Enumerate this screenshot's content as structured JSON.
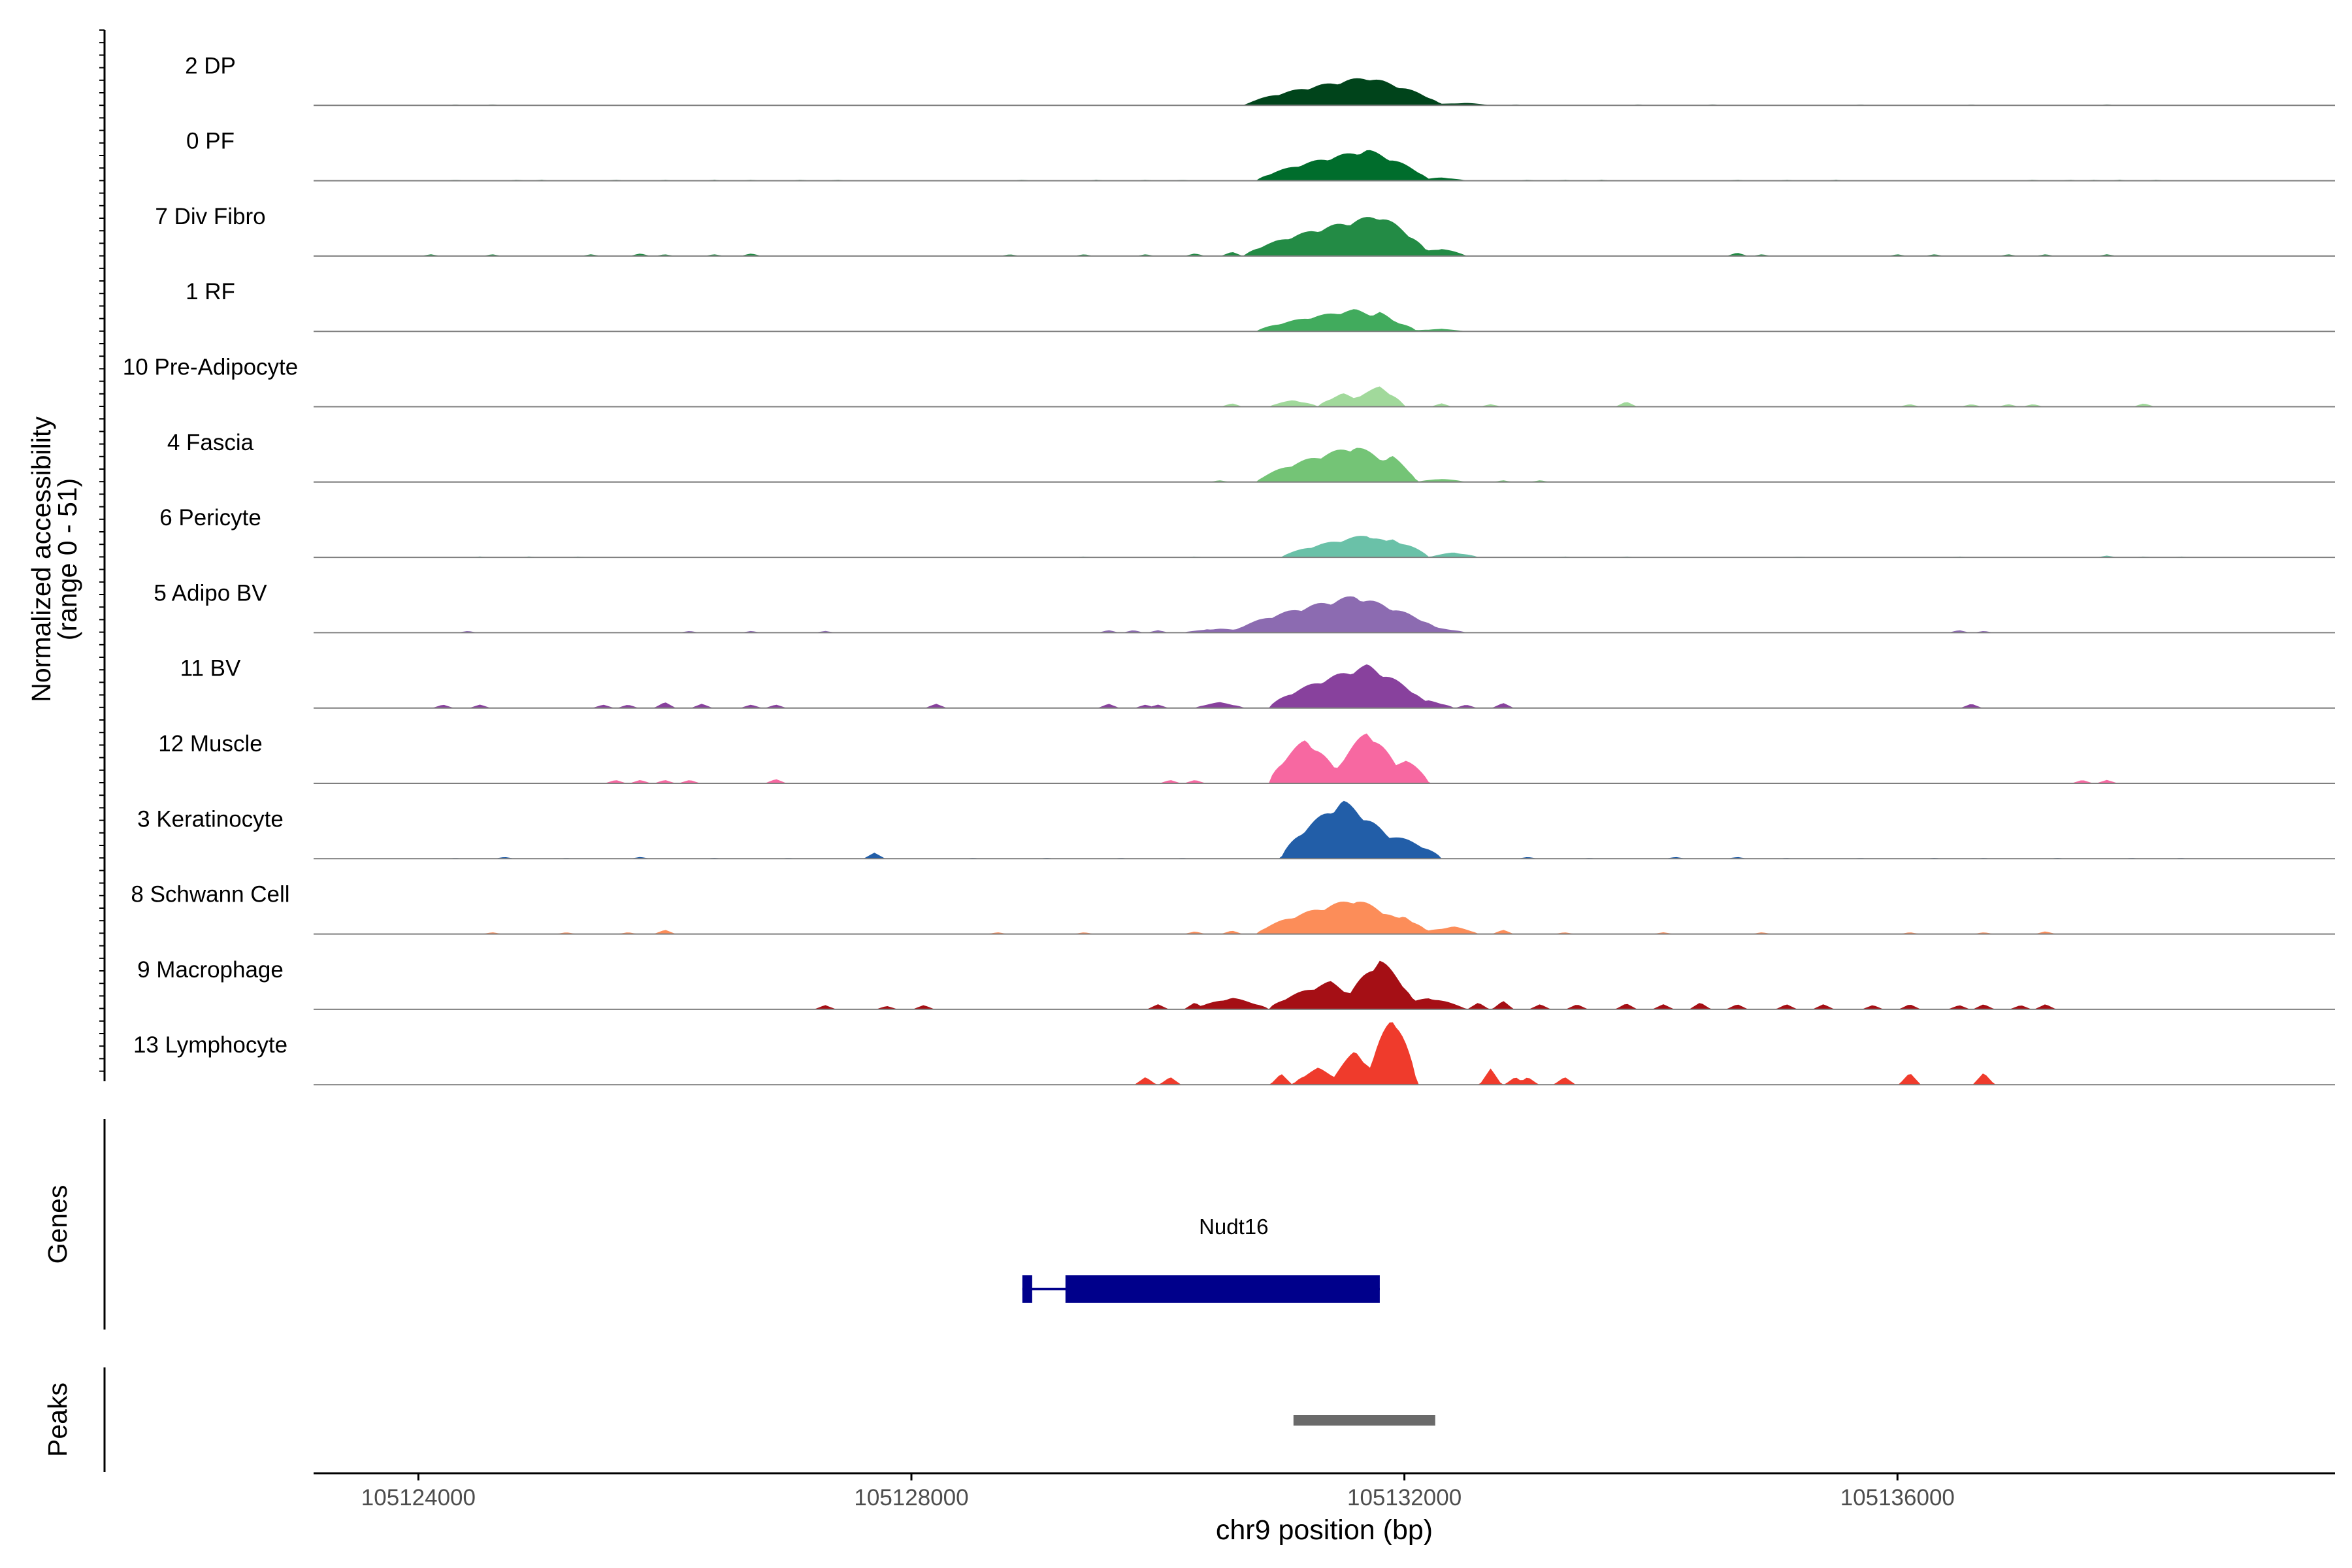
{
  "chart_data": {
    "type": "area",
    "title": "",
    "ylabel_line1": "Normalized accessibility",
    "ylabel_line2": "(range 0 - 51)",
    "y_range": [
      0,
      51
    ],
    "xlabel": "chr9 position (bp)",
    "xlim": [
      105123150,
      105139550
    ],
    "x_ticks": [
      105124000,
      105128000,
      105132000,
      105136000
    ],
    "x_tick_labels": [
      "105124000",
      "105128000",
      "105132000",
      "105136000"
    ],
    "tracks": [
      {
        "name": "2 DP",
        "color": "#00441b",
        "peaks": [
          [
            105131700,
            105130700,
            105132300,
            34
          ],
          [
            105131100,
            105130900,
            105131300,
            10
          ],
          [
            105132500,
            105132100,
            105132700,
            3
          ]
        ],
        "bumps": [
          [
            105124300,
            1
          ],
          [
            105124600,
            1
          ],
          [
            105132900,
            1
          ],
          [
            105133900,
            1
          ],
          [
            105134500,
            1
          ],
          [
            105135700,
            1
          ],
          [
            105136600,
            1
          ],
          [
            105137700,
            1
          ]
        ]
      },
      {
        "name": "0 PF",
        "color": "#006d2c",
        "peaks": [
          [
            105131700,
            105130800,
            105132200,
            37
          ],
          [
            105132300,
            105132100,
            105132500,
            4
          ]
        ],
        "bumps": [
          [
            105124300,
            1
          ],
          [
            105124800,
            1
          ],
          [
            105125000,
            1
          ],
          [
            105125600,
            1
          ],
          [
            105126000,
            1
          ],
          [
            105126400,
            1
          ],
          [
            105126700,
            1
          ],
          [
            105127100,
            1
          ],
          [
            105127400,
            1
          ],
          [
            105128900,
            1
          ],
          [
            105129500,
            1
          ],
          [
            105129900,
            1
          ],
          [
            105130200,
            1
          ],
          [
            105133000,
            1
          ],
          [
            105133300,
            1
          ],
          [
            105133600,
            1
          ],
          [
            105134700,
            1
          ],
          [
            105135100,
            1
          ],
          [
            105135500,
            1
          ],
          [
            105137100,
            1
          ],
          [
            105137400,
            1
          ],
          [
            105137600,
            1
          ],
          [
            105137800,
            1
          ],
          [
            105138100,
            1
          ]
        ]
      },
      {
        "name": "7 Div Fibro",
        "color": "#238b45",
        "peaks": [
          [
            105131800,
            105130700,
            105132200,
            49
          ],
          [
            105131300,
            105131000,
            105131600,
            20
          ],
          [
            105132300,
            105132000,
            105132500,
            9
          ]
        ],
        "bumps": [
          [
            105124100,
            2
          ],
          [
            105124600,
            2
          ],
          [
            105125400,
            2
          ],
          [
            105125800,
            3
          ],
          [
            105126000,
            2
          ],
          [
            105126400,
            2
          ],
          [
            105126700,
            3
          ],
          [
            105128800,
            2
          ],
          [
            105129400,
            2
          ],
          [
            105129900,
            2
          ],
          [
            105130300,
            3
          ],
          [
            105130600,
            5
          ],
          [
            105130900,
            4
          ],
          [
            105134700,
            4
          ],
          [
            105134900,
            2
          ],
          [
            105136000,
            2
          ],
          [
            105136300,
            2
          ],
          [
            105136900,
            2
          ],
          [
            105137200,
            2
          ],
          [
            105137700,
            2
          ]
        ]
      },
      {
        "name": "1 RF",
        "color": "#41ab5d",
        "peaks": [
          [
            105131600,
            105130800,
            105132100,
            26
          ],
          [
            105131800,
            105131500,
            105132000,
            23
          ],
          [
            105132300,
            105132000,
            105132500,
            3
          ]
        ],
        "bumps": []
      },
      {
        "name": "10 Pre-Adipocyte",
        "color": "#a1d99b",
        "peaks": [
          [
            105131800,
            105131500,
            105132000,
            24
          ],
          [
            105131500,
            105131300,
            105131700,
            16
          ],
          [
            105131100,
            105130900,
            105131300,
            8
          ]
        ],
        "bumps": [
          [
            105130600,
            4
          ],
          [
            105132300,
            4
          ],
          [
            105132700,
            3
          ],
          [
            105133800,
            6
          ],
          [
            105136100,
            3
          ],
          [
            105136600,
            3
          ],
          [
            105136900,
            3
          ],
          [
            105137100,
            3
          ],
          [
            105138000,
            4
          ]
        ]
      },
      {
        "name": "4 Fascia",
        "color": "#74c476",
        "peaks": [
          [
            105131600,
            105130800,
            105132100,
            43
          ],
          [
            105131900,
            105131600,
            105132100,
            31
          ],
          [
            105132300,
            105132100,
            105132500,
            4
          ]
        ],
        "bumps": [
          [
            105130500,
            2
          ],
          [
            105132800,
            2
          ],
          [
            105133100,
            2
          ]
        ]
      },
      {
        "name": "6 Pericyte",
        "color": "#6ac1a8",
        "peaks": [
          [
            105131700,
            105131000,
            105132100,
            27
          ],
          [
            105131900,
            105131700,
            105132200,
            22
          ],
          [
            105132400,
            105132200,
            105132600,
            6
          ]
        ],
        "bumps": [
          [
            105124500,
            1
          ],
          [
            105124900,
            1
          ],
          [
            105125300,
            1
          ],
          [
            105129400,
            1
          ],
          [
            105130300,
            1
          ],
          [
            105133300,
            1
          ],
          [
            105133800,
            1
          ],
          [
            105135200,
            1
          ],
          [
            105136500,
            1
          ],
          [
            105137700,
            2
          ],
          [
            105138000,
            1
          ],
          [
            105138300,
            1
          ]
        ]
      },
      {
        "name": "5 Adipo BV",
        "color": "#8c6bb1",
        "peaks": [
          [
            105131600,
            105130600,
            105132300,
            44
          ],
          [
            105132200,
            105131900,
            105132500,
            7
          ],
          [
            105130500,
            105130200,
            105130800,
            5
          ]
        ],
        "bumps": [
          [
            105124400,
            2
          ],
          [
            105126200,
            2
          ],
          [
            105126700,
            2
          ],
          [
            105127300,
            2
          ],
          [
            105129600,
            3
          ],
          [
            105129800,
            3
          ],
          [
            105130000,
            3
          ],
          [
            105130400,
            4
          ],
          [
            105136500,
            3
          ],
          [
            105136700,
            2
          ]
        ]
      },
      {
        "name": "11 BV",
        "color": "#88419d",
        "peaks": [
          [
            105131700,
            105130900,
            105132200,
            51
          ],
          [
            105131200,
            105130900,
            105131400,
            14
          ],
          [
            105132200,
            105131900,
            105132400,
            9
          ],
          [
            105130500,
            105130300,
            105130700,
            7
          ]
        ],
        "bumps": [
          [
            105124200,
            4
          ],
          [
            105124500,
            4
          ],
          [
            105125500,
            4
          ],
          [
            105125700,
            4
          ],
          [
            105126000,
            7
          ],
          [
            105126300,
            5
          ],
          [
            105126700,
            4
          ],
          [
            105126900,
            4
          ],
          [
            105128200,
            5
          ],
          [
            105129600,
            5
          ],
          [
            105129900,
            4
          ],
          [
            105130000,
            4
          ],
          [
            105132500,
            4
          ],
          [
            105132800,
            6
          ],
          [
            105136600,
            5
          ]
        ]
      },
      {
        "name": "12 Muscle",
        "color": "#f768a1",
        "peaks": [
          [
            105131200,
            105130900,
            105131500,
            53
          ],
          [
            105131700,
            105131400,
            105132000,
            63
          ],
          [
            105132000,
            105131800,
            105132200,
            30
          ]
        ],
        "bumps": [
          [
            105125600,
            4
          ],
          [
            105125800,
            4
          ],
          [
            105126000,
            4
          ],
          [
            105126200,
            4
          ],
          [
            105126900,
            5
          ],
          [
            105130100,
            4
          ],
          [
            105130300,
            4
          ],
          [
            105137500,
            4
          ],
          [
            105137700,
            4
          ]
        ]
      },
      {
        "name": "3 Keratinocyte",
        "color": "#225ea8",
        "peaks": [
          [
            105131500,
            105131000,
            105132000,
            69
          ],
          [
            105131900,
            105131700,
            105132300,
            29
          ]
        ],
        "bumps": [
          [
            105124300,
            1
          ],
          [
            105124700,
            2
          ],
          [
            105125200,
            1
          ],
          [
            105125800,
            2
          ],
          [
            105126400,
            1
          ],
          [
            105127000,
            1
          ],
          [
            105127700,
            7
          ],
          [
            105128500,
            1
          ],
          [
            105129100,
            1
          ],
          [
            105129700,
            1
          ],
          [
            105130200,
            1
          ],
          [
            105133000,
            2
          ],
          [
            105133500,
            1
          ],
          [
            105134200,
            2
          ],
          [
            105134700,
            2
          ],
          [
            105135100,
            1
          ],
          [
            105135700,
            1
          ],
          [
            105136300,
            1
          ],
          [
            105136700,
            1
          ],
          [
            105137300,
            1
          ],
          [
            105137900,
            1
          ],
          [
            105138300,
            1
          ]
        ]
      },
      {
        "name": "8 Schwann Cell",
        "color": "#fc8d59",
        "peaks": [
          [
            105131600,
            105130800,
            105132100,
            42
          ],
          [
            105132000,
            105131700,
            105132200,
            21
          ],
          [
            105132400,
            105132100,
            105132600,
            9
          ]
        ],
        "bumps": [
          [
            105124600,
            2
          ],
          [
            105125200,
            2
          ],
          [
            105125700,
            2
          ],
          [
            105126000,
            5
          ],
          [
            105128700,
            2
          ],
          [
            105129400,
            2
          ],
          [
            105130300,
            3
          ],
          [
            105130600,
            4
          ],
          [
            105132800,
            5
          ],
          [
            105133300,
            2
          ],
          [
            105134100,
            2
          ],
          [
            105134900,
            2
          ],
          [
            105136100,
            2
          ],
          [
            105136700,
            2
          ],
          [
            105137200,
            3
          ]
        ]
      },
      {
        "name": "9 Macrophage",
        "color": "#a50f15",
        "peaks": [
          [
            105131800,
            105131500,
            105132100,
            60
          ],
          [
            105131400,
            105130900,
            105131700,
            33
          ],
          [
            105130600,
            105130300,
            105130900,
            14
          ],
          [
            105132200,
            105131900,
            105132500,
            14
          ]
        ],
        "bumps": [
          [
            105127300,
            5
          ],
          [
            105127800,
            4
          ],
          [
            105128100,
            5
          ],
          [
            105130000,
            6
          ],
          [
            105130300,
            8
          ],
          [
            105132600,
            8
          ],
          [
            105132800,
            10
          ],
          [
            105133100,
            6
          ],
          [
            105133400,
            6
          ],
          [
            105133800,
            7
          ],
          [
            105134100,
            6
          ],
          [
            105134400,
            8
          ],
          [
            105134700,
            6
          ],
          [
            105135100,
            6
          ],
          [
            105135400,
            6
          ],
          [
            105135800,
            5
          ],
          [
            105136100,
            6
          ],
          [
            105136500,
            5
          ],
          [
            105136700,
            6
          ],
          [
            105137000,
            5
          ],
          [
            105137200,
            6
          ]
        ]
      },
      {
        "name": "13 Lymphocyte",
        "color": "#ef3b2c",
        "peaks": [
          [
            105131900,
            105131700,
            105132100,
            85
          ],
          [
            105131600,
            105131400,
            105131800,
            40
          ],
          [
            105131300,
            105131100,
            105131500,
            20
          ]
        ],
        "bumps": [
          [
            105129900,
            9
          ],
          [
            105130100,
            9
          ],
          [
            105131000,
            13
          ],
          [
            105132700,
            19
          ],
          [
            105132900,
            9
          ],
          [
            105133000,
            9
          ],
          [
            105133300,
            9
          ],
          [
            105136100,
            14
          ],
          [
            105136700,
            14
          ]
        ]
      }
    ],
    "genes": [
      {
        "name": "Nudt16",
        "color": "#00008b",
        "start": 105128900,
        "end": 105131800,
        "exons": [
          [
            105128900,
            105128980
          ],
          [
            105129250,
            105131800
          ]
        ]
      }
    ],
    "peaks": [
      {
        "start": 105131100,
        "end": 105132250,
        "color": "#6a6a6a"
      }
    ],
    "panel_labels": {
      "genes": "Genes",
      "peaks": "Peaks"
    }
  }
}
